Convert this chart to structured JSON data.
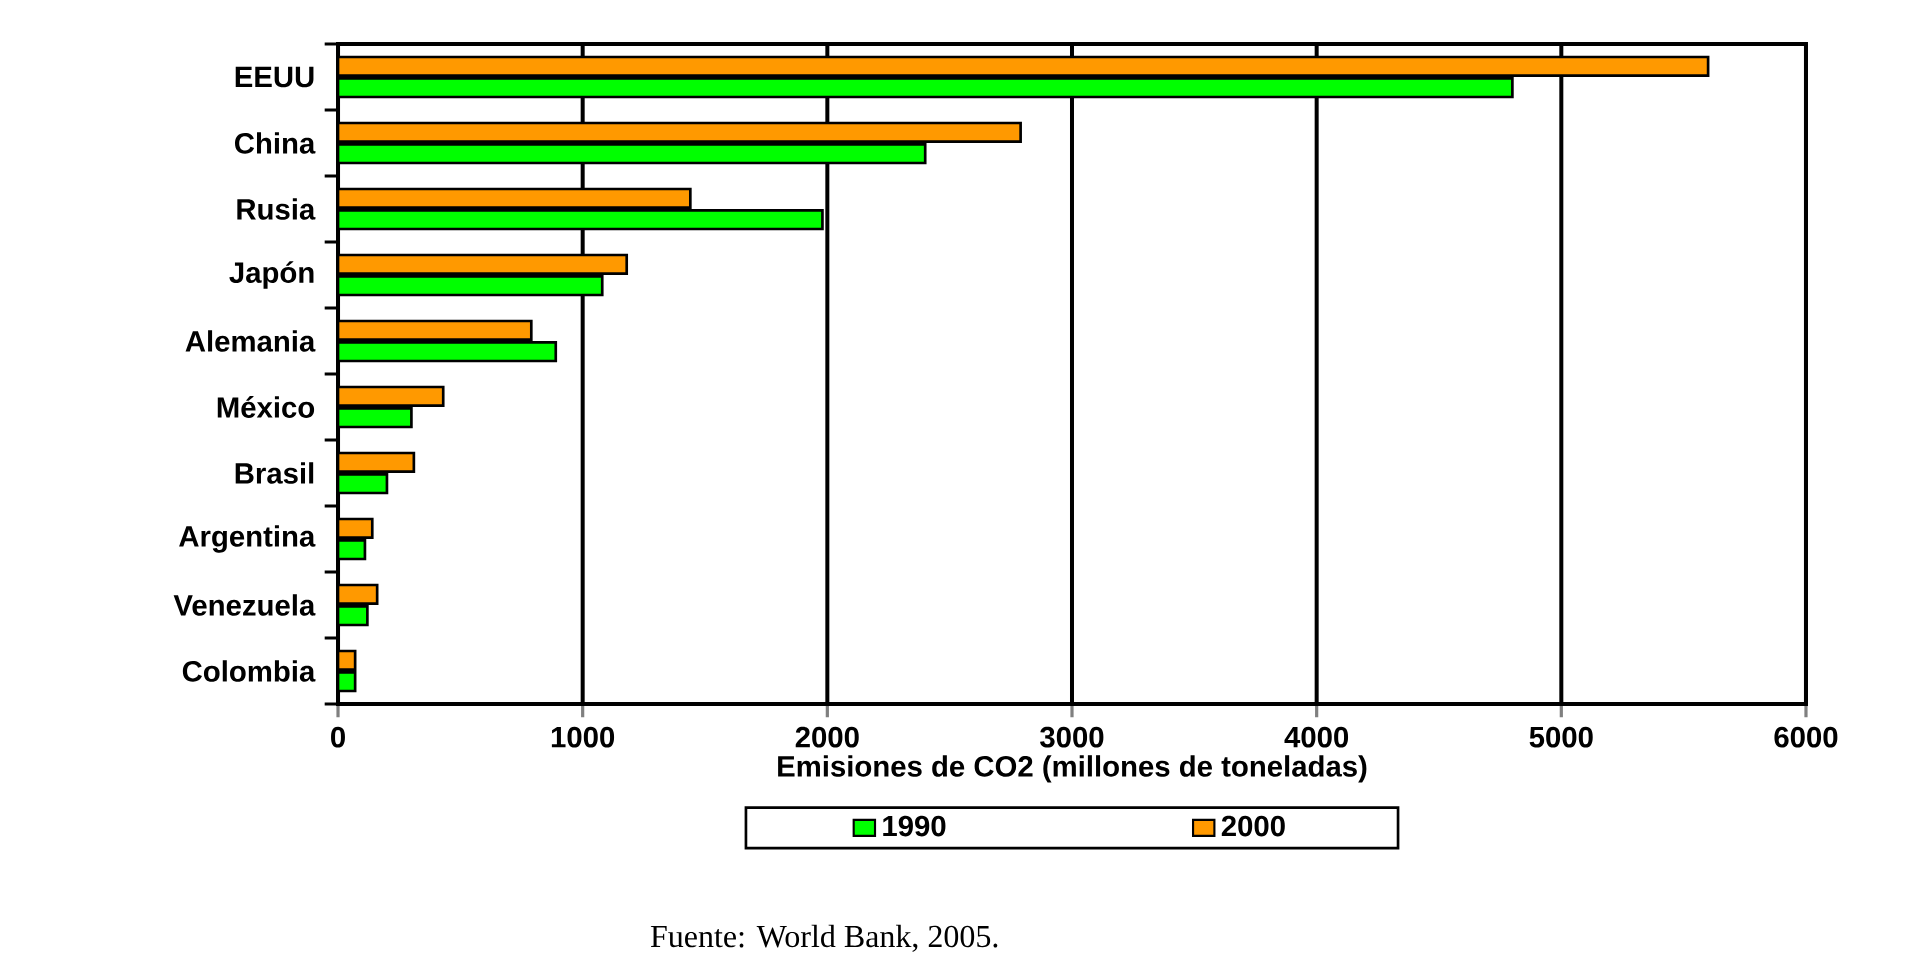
{
  "chart_data": {
    "type": "bar",
    "orientation": "horizontal",
    "categories": [
      "EEUU",
      "China",
      "Rusia",
      "Japón",
      "Alemania",
      "México",
      "Brasil",
      "Argentina",
      "Venezuela",
      "Colombia"
    ],
    "series": [
      {
        "name": "1990",
        "color": "#00ff00",
        "values": [
          4800,
          2400,
          1980,
          1080,
          890,
          300,
          200,
          110,
          120,
          70
        ]
      },
      {
        "name": "2000",
        "color": "#ff9900",
        "values": [
          5600,
          2790,
          1440,
          1180,
          790,
          430,
          310,
          140,
          160,
          70
        ]
      }
    ],
    "xlabel": "Emisiones de CO2 (millones de toneladas)",
    "xlim": [
      0,
      6000
    ],
    "xticks": [
      0,
      1000,
      2000,
      3000,
      4000,
      5000,
      6000
    ],
    "grid": "x",
    "legend": "bottom",
    "annotations": [
      "Fuente: World Bank, 2005."
    ]
  }
}
